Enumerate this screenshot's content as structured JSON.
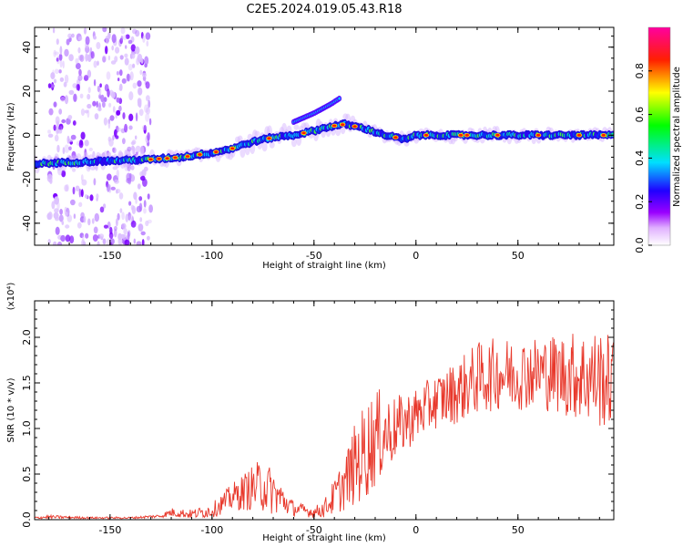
{
  "title": "C2E5.2024.019.05.43.R18",
  "chart_data": [
    {
      "type": "heatmap",
      "title": "C2E5.2024.019.05.43.R18",
      "xlabel": "Height of straight line (km)",
      "ylabel": "Frequency (Hz)",
      "xlim": [
        -187,
        97
      ],
      "ylim": [
        -50,
        49
      ],
      "xticks": [
        -150,
        -100,
        -50,
        0,
        50
      ],
      "yticks": [
        -40,
        -20,
        0,
        20,
        40
      ],
      "colorbar": {
        "label": "Normalized spectral amplitude",
        "range": [
          0.0,
          1.0
        ],
        "ticks": [
          "0.0",
          "0.2",
          "0.4",
          "0.6",
          "0.8"
        ],
        "colors": [
          "#ffffff",
          "#b000ff",
          "#0000ff",
          "#00ffff",
          "#00ff00",
          "#ffff00",
          "#ff0000",
          "#ff00ff"
        ]
      },
      "ridge": {
        "x": [
          -187,
          -160,
          -130,
          -115,
          -100,
          -90,
          -80,
          -70,
          -60,
          -50,
          -42,
          -35,
          -25,
          -15,
          -5,
          0,
          20,
          40,
          60,
          80,
          97
        ],
        "y": [
          -13,
          -12,
          -11,
          -10,
          -8,
          -6,
          -3,
          -1,
          0,
          2,
          4,
          5,
          3,
          0,
          -2,
          0,
          0,
          0,
          0,
          0,
          0
        ]
      },
      "branch": {
        "x": [
          -60,
          -50,
          -42,
          -37
        ],
        "y": [
          6,
          10,
          14,
          17
        ]
      },
      "noise_region": {
        "x": [
          -180,
          -130
        ],
        "y": [
          -50,
          49
        ]
      }
    },
    {
      "type": "line",
      "xlabel": "Height of straight line (km)",
      "ylabel": "SNR (10 * v/v)",
      "multiplier": "(x10⁴)",
      "xlim": [
        -187,
        97
      ],
      "ylim": [
        0.0,
        2.4
      ],
      "xticks": [
        -150,
        -100,
        -50,
        0,
        50
      ],
      "yticks": [
        0.0,
        0.5,
        1.0,
        1.5,
        2.0
      ],
      "series": [
        {
          "color": "#e8382b",
          "envelope_x": [
            -187,
            -180,
            -160,
            -140,
            -125,
            -120,
            -110,
            -100,
            -90,
            -80,
            -75,
            -70,
            -60,
            -50,
            -45,
            -40,
            -35,
            -30,
            -25,
            -20,
            -15,
            -10,
            0,
            10,
            20,
            30,
            40,
            50,
            60,
            70,
            80,
            90,
            97
          ],
          "envelope_mean": [
            0.02,
            0.03,
            0.02,
            0.02,
            0.04,
            0.08,
            0.06,
            0.1,
            0.25,
            0.35,
            0.38,
            0.3,
            0.12,
            0.08,
            0.12,
            0.25,
            0.4,
            0.6,
            0.75,
            0.9,
            0.95,
            1.0,
            1.15,
            1.3,
            1.4,
            1.55,
            1.6,
            1.6,
            1.62,
            1.6,
            1.58,
            1.55,
            1.5
          ],
          "envelope_amp": [
            0.01,
            0.02,
            0.01,
            0.01,
            0.02,
            0.05,
            0.05,
            0.08,
            0.15,
            0.25,
            0.3,
            0.25,
            0.08,
            0.06,
            0.1,
            0.2,
            0.3,
            0.45,
            0.55,
            0.55,
            0.45,
            0.35,
            0.3,
            0.3,
            0.35,
            0.4,
            0.4,
            0.4,
            0.4,
            0.45,
            0.5,
            0.55,
            0.5
          ]
        }
      ]
    }
  ]
}
